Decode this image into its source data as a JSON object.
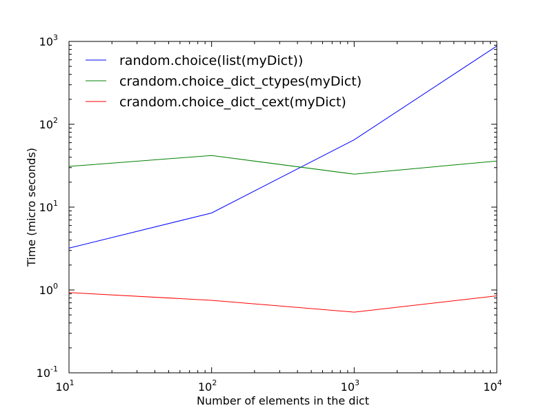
{
  "chart_data": {
    "type": "line",
    "title": "",
    "xlabel": "Number of elements in the dict",
    "ylabel": "Time (micro seconds)",
    "xscale": "log",
    "yscale": "log",
    "xlim": [
      10,
      10000
    ],
    "ylim": [
      0.1,
      1000
    ],
    "grid": false,
    "legend_position": "top-left",
    "x": [
      10,
      100,
      1000,
      10000
    ],
    "x_ticks": [
      {
        "value": 10,
        "base": "10",
        "exp": "1"
      },
      {
        "value": 100,
        "base": "10",
        "exp": "2"
      },
      {
        "value": 1000,
        "base": "10",
        "exp": "3"
      },
      {
        "value": 10000,
        "base": "10",
        "exp": "4"
      }
    ],
    "y_ticks": [
      {
        "value": 0.1,
        "base": "10",
        "exp": "-1"
      },
      {
        "value": 1,
        "base": "10",
        "exp": "0"
      },
      {
        "value": 10,
        "base": "10",
        "exp": "1"
      },
      {
        "value": 100,
        "base": "10",
        "exp": "2"
      },
      {
        "value": 1000,
        "base": "10",
        "exp": "3"
      }
    ],
    "series": [
      {
        "name": "random.choice(list(myDict))",
        "color": "#0000ff",
        "values": [
          3.2,
          8.5,
          65,
          880
        ]
      },
      {
        "name": "crandom.choice_dict_ctypes(myDict)",
        "color": "#008000",
        "values": [
          31,
          42,
          25,
          36
        ]
      },
      {
        "name": "crandom.choice_dict_cext(myDict)",
        "color": "#ff0000",
        "values": [
          0.93,
          0.75,
          0.54,
          0.85
        ]
      }
    ]
  }
}
